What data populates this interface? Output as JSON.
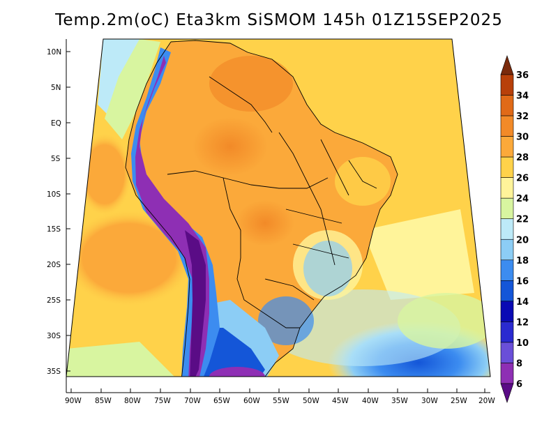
{
  "title": "Temp.2m(oC) Eta3km SiSMOM 145h 01Z15SEP2025",
  "axes": {
    "lat_labels": [
      "10N",
      "5N",
      "EQ",
      "5S",
      "10S",
      "15S",
      "20S",
      "25S",
      "30S",
      "35S"
    ],
    "lon_labels": [
      "90W",
      "85W",
      "80W",
      "75W",
      "70W",
      "65W",
      "60W",
      "55W",
      "50W",
      "45W",
      "40W",
      "35W",
      "30W",
      "25W",
      "20W"
    ]
  },
  "colorbar": {
    "levels": [
      "6",
      "8",
      "10",
      "12",
      "14",
      "16",
      "18",
      "20",
      "22",
      "24",
      "26",
      "28",
      "30",
      "32",
      "34",
      "36"
    ],
    "colors": [
      "#5a0c86",
      "#8e2fb4",
      "#6a4fd8",
      "#2a2ad0",
      "#0a0ab4",
      "#1456d8",
      "#3c8cf0",
      "#8ccdf5",
      "#bdeaf8",
      "#d8f5a0",
      "#fff49a",
      "#ffd24a",
      "#fba93a",
      "#f28a28",
      "#e06a18",
      "#b8400a",
      "#7a2a0c"
    ]
  }
}
